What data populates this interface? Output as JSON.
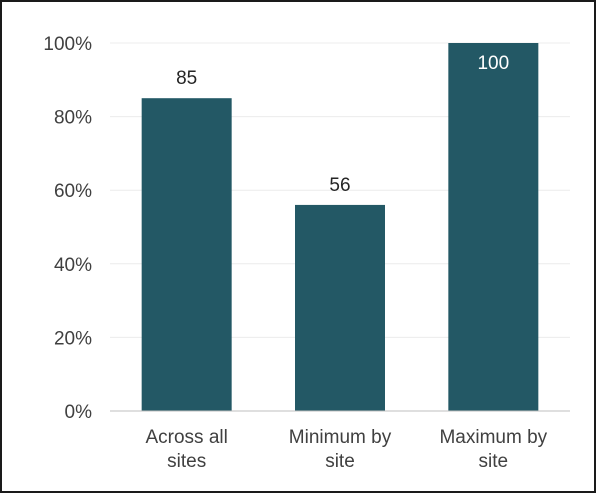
{
  "chart_data": {
    "type": "bar",
    "categories": [
      [
        "Across all",
        "sites"
      ],
      [
        "Minimum by",
        "site"
      ],
      [
        "Maximum by",
        "site"
      ]
    ],
    "values": [
      85,
      56,
      100
    ],
    "data_labels": [
      "85",
      "56",
      "100"
    ],
    "ylim": [
      0,
      100
    ],
    "yticks": [
      0,
      20,
      40,
      60,
      80,
      100
    ],
    "ytick_labels": [
      "0%",
      "20%",
      "40%",
      "60%",
      "80%",
      "100%"
    ],
    "title": "",
    "xlabel": "",
    "ylabel": "",
    "grid": true,
    "legend": "none",
    "colors": {
      "bar": "#235865",
      "grid": "#ececec",
      "axis": "#bfbfbf",
      "label_dark": "#262626",
      "label_light": "#ffffff"
    }
  }
}
